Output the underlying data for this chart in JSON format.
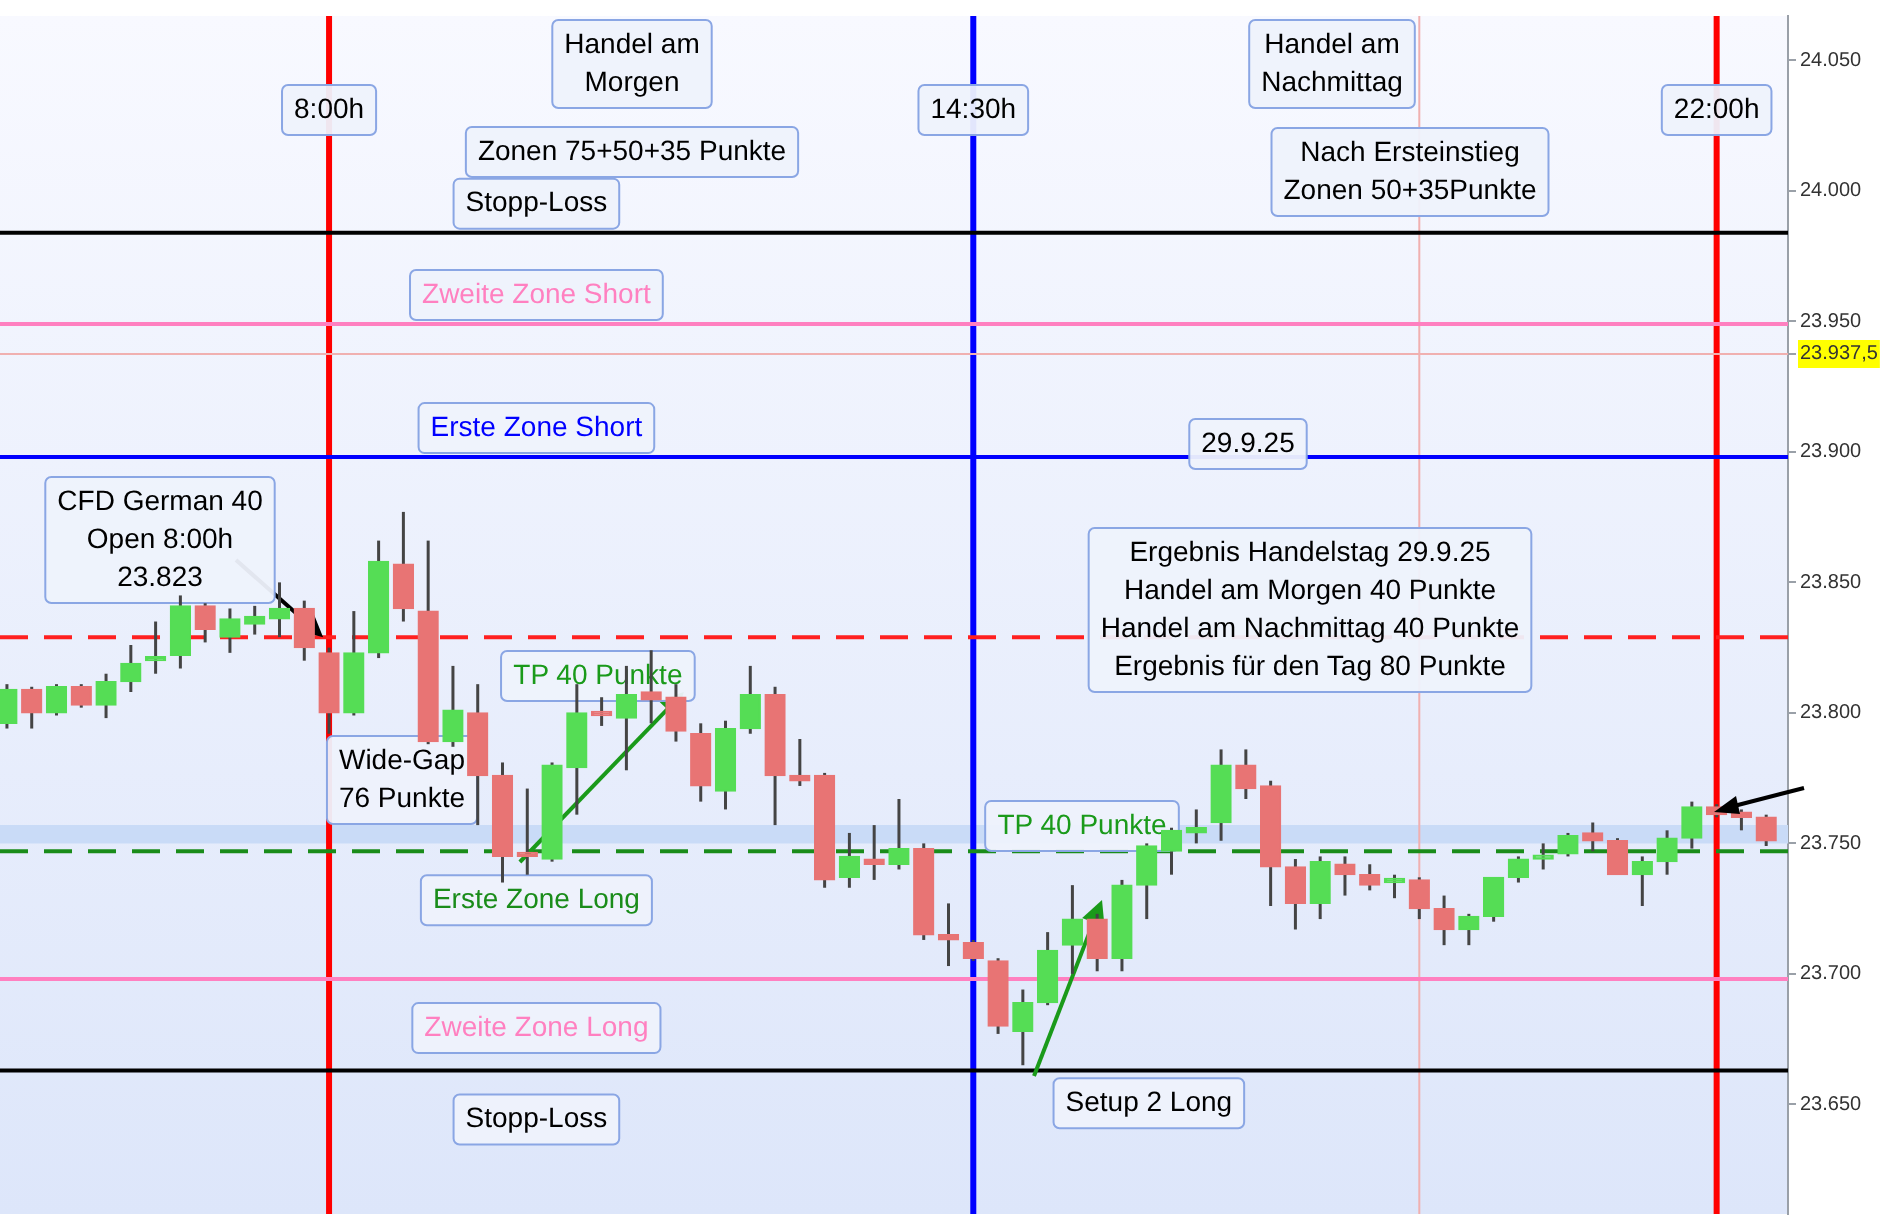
{
  "chart_data": {
    "type": "candlestick",
    "x": [
      4.75,
      5,
      5.25,
      5.5,
      5.75,
      6,
      6.25,
      6.5,
      6.75,
      7,
      7.25,
      7.5,
      7.75,
      8,
      8.25,
      8.5,
      8.75,
      9,
      9.25,
      9.5,
      9.75,
      10,
      10.25,
      10.5,
      10.75,
      11,
      11.25,
      11.5,
      11.75,
      12,
      12.25,
      12.5,
      12.75,
      13,
      13.25,
      13.5,
      13.75,
      14,
      14.25,
      14.5,
      14.75,
      15,
      15.25,
      15.5,
      15.75,
      16,
      16.25,
      16.5,
      16.75,
      17,
      17.25,
      17.5,
      17.75,
      18,
      18.25,
      18.5,
      18.75,
      19,
      19.25,
      19.5,
      19.75,
      20,
      20.25,
      20.5,
      20.75,
      21,
      21.25,
      21.5,
      21.75,
      22,
      22.25,
      22.5
    ],
    "ohlc": [
      [
        23796,
        23811,
        23794,
        23809
      ],
      [
        23809,
        23810,
        23794,
        23800
      ],
      [
        23800,
        23811,
        23799,
        23810
      ],
      [
        23810,
        23811,
        23802,
        23803
      ],
      [
        23803,
        23815,
        23798,
        23812
      ],
      [
        23812,
        23826,
        23808,
        23819
      ],
      [
        23820,
        23835,
        23815,
        23821
      ],
      [
        23822,
        23845,
        23817,
        23841
      ],
      [
        23841,
        23842,
        23827,
        23832
      ],
      [
        23829,
        23840,
        23823,
        23836
      ],
      [
        23834,
        23841,
        23830,
        23837
      ],
      [
        23836,
        23850,
        23829,
        23840
      ],
      [
        23840,
        23843,
        23820,
        23825
      ],
      [
        23823,
        23825,
        23792,
        23800
      ],
      [
        23800,
        23839,
        23799,
        23823
      ],
      [
        23823,
        23866,
        23821,
        23858
      ],
      [
        23857,
        23877,
        23835,
        23840
      ],
      [
        23839,
        23866,
        23788,
        23789
      ],
      [
        23789,
        23818,
        23787,
        23801
      ],
      [
        23800,
        23811,
        23757,
        23776
      ],
      [
        23776,
        23781,
        23735,
        23745
      ],
      [
        23746,
        23771,
        23738,
        23745
      ],
      [
        23744,
        23781,
        23743,
        23780
      ],
      [
        23779,
        23811,
        23761,
        23800
      ],
      [
        23800,
        23806,
        23795,
        23799
      ],
      [
        23798,
        23818,
        23778,
        23807
      ],
      [
        23808,
        23824,
        23796,
        23805
      ],
      [
        23806,
        23811,
        23789,
        23793
      ],
      [
        23792,
        23796,
        23766,
        23772
      ],
      [
        23770,
        23797,
        23763,
        23794
      ],
      [
        23794,
        23818,
        23792,
        23807
      ],
      [
        23807,
        23810,
        23757,
        23776
      ],
      [
        23776,
        23790,
        23772,
        23774
      ],
      [
        23776,
        23777,
        23733,
        23736
      ],
      [
        23737,
        23754,
        23733,
        23745
      ],
      [
        23744,
        23757,
        23736,
        23742
      ],
      [
        23742,
        23767,
        23740,
        23748
      ],
      [
        23748,
        23750,
        23713,
        23715
      ],
      [
        23715,
        23727,
        23703,
        23713
      ],
      [
        23712,
        23713,
        23705,
        23706
      ],
      [
        23705,
        23706,
        23677,
        23680
      ],
      [
        23678,
        23694,
        23665,
        23689
      ],
      [
        23689,
        23716,
        23688,
        23709
      ],
      [
        23711,
        23734,
        23700,
        23721
      ],
      [
        23721,
        23723,
        23701,
        23706
      ],
      [
        23706,
        23736,
        23701,
        23734
      ],
      [
        23734,
        23750,
        23721,
        23749
      ],
      [
        23747,
        23756,
        23738,
        23755
      ],
      [
        23754,
        23763,
        23750,
        23756
      ],
      [
        23758,
        23786,
        23751,
        23780
      ],
      [
        23780,
        23786,
        23767,
        23771
      ],
      [
        23772,
        23774,
        23726,
        23741
      ],
      [
        23741,
        23744,
        23717,
        23727
      ],
      [
        23727,
        23745,
        23721,
        23743
      ],
      [
        23742,
        23745,
        23730,
        23738
      ],
      [
        23738,
        23742,
        23732,
        23734
      ],
      [
        23735,
        23738,
        23729,
        23736
      ],
      [
        23736,
        23737,
        23721,
        23725
      ],
      [
        23725,
        23730,
        23711,
        23717
      ],
      [
        23717,
        23723,
        23711,
        23722
      ],
      [
        23722,
        23737,
        23720,
        23737
      ],
      [
        23737,
        23745,
        23735,
        23744
      ],
      [
        23744,
        23750,
        23740,
        23745
      ],
      [
        23746,
        23754,
        23745,
        23753
      ],
      [
        23754,
        23758,
        23747,
        23751
      ],
      [
        23751,
        23752,
        23738,
        23738
      ],
      [
        23738,
        23745,
        23726,
        23743
      ],
      [
        23743,
        23755,
        23738,
        23752
      ],
      [
        23752,
        23766,
        23748,
        23764
      ],
      [
        23764,
        23765,
        23760,
        23761
      ],
      [
        23762,
        23763,
        23755,
        23760
      ],
      [
        23760,
        23761,
        23749,
        23751
      ]
    ],
    "colors": [
      "#55dd55",
      "#e87474",
      "#55dd55",
      "#e87474",
      "#55dd55",
      "#55dd55",
      "#55dd55",
      "#55dd55",
      "#e87474",
      "#55dd55",
      "#55dd55",
      "#55dd55",
      "#e87474",
      "#e87474",
      "#55dd55",
      "#55dd55",
      "#e87474",
      "#e87474",
      "#55dd55",
      "#e87474",
      "#e87474",
      "#e87474",
      "#55dd55",
      "#55dd55",
      "#e87474",
      "#55dd55",
      "#e87474",
      "#e87474",
      "#e87474",
      "#55dd55",
      "#55dd55",
      "#e87474",
      "#e87474",
      "#e87474",
      "#55dd55",
      "#e87474",
      "#55dd55",
      "#e87474",
      "#e87474",
      "#e87474",
      "#e87474",
      "#55dd55",
      "#55dd55",
      "#55dd55",
      "#e87474",
      "#55dd55",
      "#55dd55",
      "#55dd55",
      "#55dd55",
      "#55dd55",
      "#e87474",
      "#e87474",
      "#e87474",
      "#55dd55",
      "#e87474",
      "#e87474",
      "#55dd55",
      "#e87474",
      "#e87474",
      "#55dd55",
      "#55dd55",
      "#55dd55",
      "#55dd55",
      "#55dd55",
      "#e87474",
      "#e87474",
      "#55dd55",
      "#55dd55",
      "#55dd55",
      "#e87474",
      "#e87474",
      "#e87474"
    ],
    "xlim": [
      4.68,
      22.72
    ],
    "ylim": [
      23608,
      24067
    ],
    "yticks": [
      {
        "value": 23650,
        "label": "23.650"
      },
      {
        "value": 23700,
        "label": "23.700"
      },
      {
        "value": 23750,
        "label": "23.750"
      },
      {
        "value": 23800,
        "label": "23.800"
      },
      {
        "value": 23850,
        "label": "23.850"
      },
      {
        "value": 23900,
        "label": "23.900"
      },
      {
        "value": 23937.5,
        "label": "23.937,5"
      },
      {
        "value": 23950,
        "label": "23.950"
      },
      {
        "value": 24000,
        "label": "24.000"
      },
      {
        "value": 24050,
        "label": "24.050"
      }
    ],
    "tick_labels": "y",
    "grid": false,
    "bands": [
      {
        "axis": "y",
        "from": 23750,
        "to": 23757,
        "color": "#c9dbf7"
      }
    ],
    "ref_lines": [
      {
        "axis": "x",
        "value": 8,
        "label": "8:00h",
        "color": "#ff0000"
      },
      {
        "axis": "x",
        "value": 14.5,
        "label": "14:30h",
        "color": "#0000ff"
      },
      {
        "axis": "x",
        "value": 22,
        "label": "22:00h",
        "color": "#ff0000"
      },
      {
        "axis": "x",
        "value": 19,
        "color": "#f0b0b0"
      },
      {
        "axis": "y",
        "value": 23937.5,
        "color": "#f0b0b0"
      },
      {
        "axis": "y",
        "value": 23984,
        "label": "Stopp-Loss",
        "color": "#000000"
      },
      {
        "axis": "y",
        "value": 23949,
        "label": "Zweite Zone Short",
        "color": "#ff80c0"
      },
      {
        "axis": "y",
        "value": 23898,
        "label": "Erste Zone Short",
        "color": "#0000ff"
      },
      {
        "axis": "y",
        "value": 23829,
        "color": "#ff2020",
        "line_style": "dashed"
      },
      {
        "axis": "y",
        "value": 23747,
        "label": "Erste Zone Long",
        "color": "#1a8c1a",
        "line_style": "dashed"
      },
      {
        "axis": "y",
        "value": 23698,
        "label": "Zweite Zone Long",
        "color": "#ff80c0"
      },
      {
        "axis": "y",
        "value": 23663,
        "label": "Stopp-Loss",
        "color": "#000000"
      }
    ],
    "annotations": [
      "Handel am\nMorgen",
      "Handel am\nNachmittag",
      "Zonen 75+50+35 Punkte",
      "Nach Ersteinstieg\nZonen 50+35Punkte",
      "29.9.25",
      "Ergebnis Handelstag 29.9.25\nHandel am Morgen 40 Punkte\nHandel am Nachmittag 40 Punkte\nErgebnis für den Tag 80 Punkte",
      {
        "text": "CFD German 40\nOpen 8:00h\n23.823",
        "x": 7.94,
        "y": 23829
      },
      "Wide-Gap\n76 Punkte",
      {
        "text": "TP 40 Punkte",
        "x": 11.58,
        "y": 23808
      },
      "TP 40 Punkte",
      {
        "text": "Setup 2 Long",
        "x": 15,
        "y": 23665
      }
    ]
  }
}
